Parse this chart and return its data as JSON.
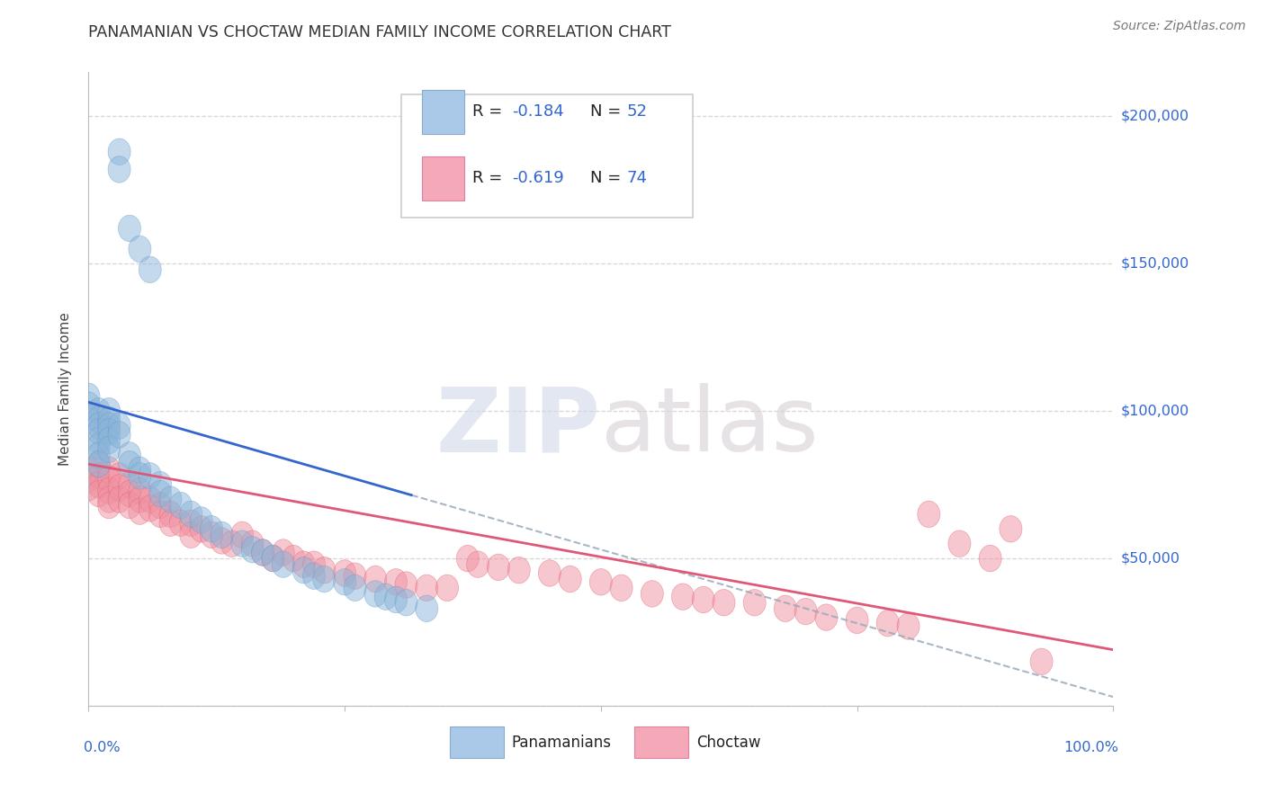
{
  "title": "PANAMANIAN VS CHOCTAW MEDIAN FAMILY INCOME CORRELATION CHART",
  "source_text": "Source: ZipAtlas.com",
  "watermark_zip": "ZIP",
  "watermark_atlas": "atlas",
  "ylabel": "Median Family Income",
  "xlim": [
    0.0,
    1.0
  ],
  "ylim": [
    0,
    215000
  ],
  "yticks": [
    0,
    50000,
    100000,
    150000,
    200000
  ],
  "ytick_labels": [
    "",
    "$50,000",
    "$100,000",
    "$150,000",
    "$200,000"
  ],
  "pan_color": "#8ab4d8",
  "pan_edge_color": "#6699cc",
  "cho_color": "#f090a0",
  "cho_edge_color": "#e06070",
  "pan_line_color": "#3366cc",
  "cho_line_color": "#e05878",
  "dashed_line_color": "#99aabb",
  "background_color": "#ffffff",
  "grid_color": "#cccccc",
  "title_color": "#333333",
  "source_color": "#777777",
  "yaxis_label_color": "#3366cc",
  "legend_text_color": "#222222",
  "pan_R": -0.184,
  "pan_N": 52,
  "cho_R": -0.619,
  "cho_N": 74,
  "pan_x": [
    0.03,
    0.03,
    0.04,
    0.05,
    0.06,
    0.0,
    0.0,
    0.0,
    0.01,
    0.01,
    0.01,
    0.01,
    0.01,
    0.01,
    0.01,
    0.01,
    0.02,
    0.02,
    0.02,
    0.02,
    0.02,
    0.02,
    0.03,
    0.03,
    0.04,
    0.04,
    0.05,
    0.05,
    0.06,
    0.07,
    0.07,
    0.08,
    0.09,
    0.1,
    0.11,
    0.12,
    0.13,
    0.15,
    0.16,
    0.17,
    0.18,
    0.19,
    0.21,
    0.22,
    0.23,
    0.25,
    0.26,
    0.28,
    0.29,
    0.3,
    0.31,
    0.33
  ],
  "pan_y": [
    188000,
    182000,
    162000,
    155000,
    148000,
    105000,
    102000,
    98000,
    100000,
    97000,
    95000,
    93000,
    90000,
    88000,
    85000,
    82000,
    100000,
    97000,
    95000,
    93000,
    90000,
    87000,
    95000,
    92000,
    85000,
    82000,
    80000,
    78000,
    78000,
    75000,
    72000,
    70000,
    68000,
    65000,
    63000,
    60000,
    58000,
    55000,
    53000,
    52000,
    50000,
    48000,
    46000,
    44000,
    43000,
    42000,
    40000,
    38000,
    37000,
    36000,
    35000,
    33000
  ],
  "cho_x": [
    0.0,
    0.0,
    0.0,
    0.01,
    0.01,
    0.01,
    0.01,
    0.02,
    0.02,
    0.02,
    0.02,
    0.02,
    0.03,
    0.03,
    0.03,
    0.04,
    0.04,
    0.04,
    0.05,
    0.05,
    0.05,
    0.06,
    0.06,
    0.07,
    0.07,
    0.08,
    0.08,
    0.09,
    0.1,
    0.1,
    0.11,
    0.12,
    0.13,
    0.14,
    0.15,
    0.16,
    0.17,
    0.18,
    0.19,
    0.2,
    0.21,
    0.22,
    0.23,
    0.25,
    0.26,
    0.28,
    0.3,
    0.31,
    0.33,
    0.35,
    0.37,
    0.38,
    0.4,
    0.42,
    0.45,
    0.47,
    0.5,
    0.52,
    0.55,
    0.58,
    0.6,
    0.62,
    0.65,
    0.68,
    0.7,
    0.72,
    0.75,
    0.78,
    0.8,
    0.82,
    0.85,
    0.88,
    0.9,
    0.93
  ],
  "cho_y": [
    80000,
    77000,
    74000,
    82000,
    78000,
    75000,
    72000,
    80000,
    77000,
    73000,
    70000,
    68000,
    78000,
    74000,
    70000,
    75000,
    72000,
    68000,
    73000,
    70000,
    66000,
    70000,
    67000,
    68000,
    65000,
    65000,
    62000,
    62000,
    62000,
    58000,
    60000,
    58000,
    56000,
    55000,
    58000,
    55000,
    52000,
    50000,
    52000,
    50000,
    48000,
    48000,
    46000,
    45000,
    44000,
    43000,
    42000,
    41000,
    40000,
    40000,
    50000,
    48000,
    47000,
    46000,
    45000,
    43000,
    42000,
    40000,
    38000,
    37000,
    36000,
    35000,
    35000,
    33000,
    32000,
    30000,
    29000,
    28000,
    27000,
    65000,
    55000,
    50000,
    60000,
    15000
  ]
}
